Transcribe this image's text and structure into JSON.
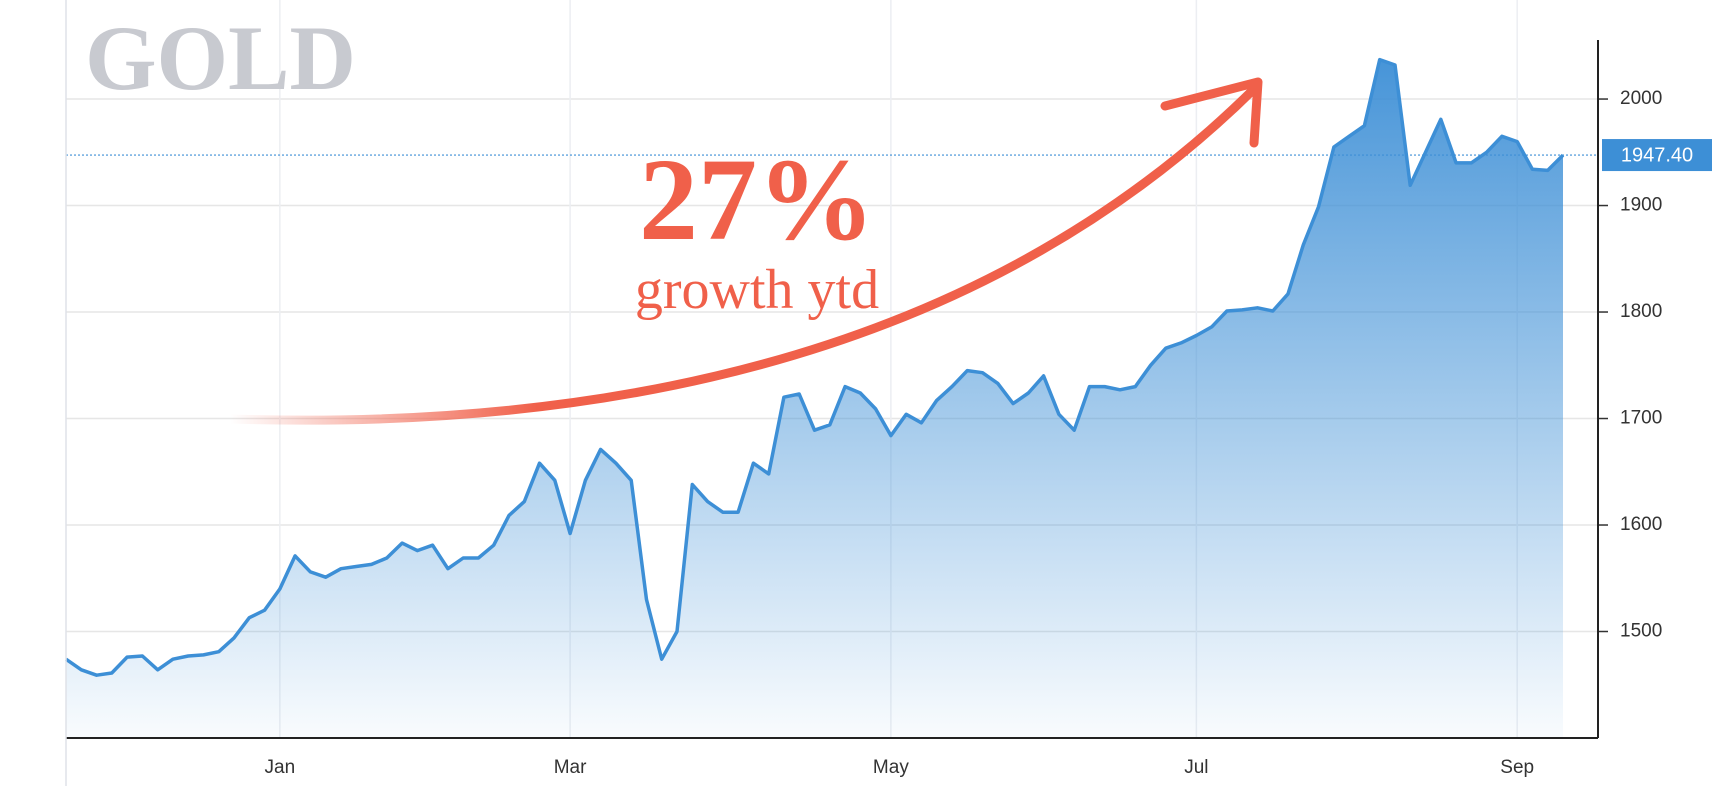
{
  "chart_data": {
    "type": "area",
    "title": "GOLD",
    "annotations": {
      "headline": "27%",
      "caption": "growth ytd"
    },
    "last_value_label": "1947.40",
    "color": "#3d8fd6",
    "ylim": [
      1400,
      2093
    ],
    "yticks": [
      1500,
      1600,
      1700,
      1800,
      1900,
      2000
    ],
    "grid": true,
    "categories": [
      null,
      null,
      null,
      null,
      null,
      null,
      null,
      null,
      null,
      null,
      null,
      null,
      null,
      null,
      "Jan",
      null,
      null,
      null,
      null,
      null,
      null,
      null,
      null,
      null,
      null,
      null,
      null,
      null,
      null,
      null,
      null,
      null,
      null,
      "Mar",
      null,
      null,
      null,
      null,
      null,
      null,
      null,
      null,
      null,
      null,
      null,
      null,
      null,
      null,
      null,
      null,
      null,
      null,
      null,
      null,
      "May",
      null,
      null,
      null,
      null,
      null,
      null,
      null,
      null,
      null,
      null,
      null,
      null,
      null,
      null,
      null,
      null,
      null,
      null,
      null,
      "Jul",
      null,
      null,
      null,
      null,
      null,
      null,
      null,
      null,
      null,
      null,
      null,
      null,
      null,
      null,
      null,
      null,
      null,
      null,
      null,
      null,
      "Sep",
      null,
      null,
      null
    ],
    "values": [
      1474,
      1464,
      1459,
      1461,
      1476,
      1477,
      1464,
      1474,
      1477,
      1478,
      1481,
      1494,
      1513,
      1520,
      1540,
      1571,
      1556,
      1551,
      1559,
      1561,
      1563,
      1569,
      1583,
      1576,
      1581,
      1559,
      1569,
      1569,
      1581,
      1609,
      1622,
      1658,
      1642,
      1592,
      1642,
      1671,
      1658,
      1642,
      1530,
      1474,
      1500,
      1638,
      1622,
      1612,
      1612,
      1658,
      1648,
      1720,
      1723,
      1689,
      1694,
      1730,
      1724,
      1709,
      1684,
      1704,
      1696,
      1717,
      1730,
      1745,
      1743,
      1733,
      1714,
      1724,
      1740,
      1704,
      1689,
      1730,
      1730,
      1727,
      1730,
      1750,
      1766,
      1771,
      1778,
      1786,
      1801,
      1802,
      1804,
      1801,
      1817,
      1863,
      1899,
      1955,
      1965,
      1975,
      2037,
      2032,
      1919,
      1950,
      1981,
      1940,
      1940,
      1950,
      1965,
      1960,
      1934,
      1933,
      1947.4
    ]
  }
}
